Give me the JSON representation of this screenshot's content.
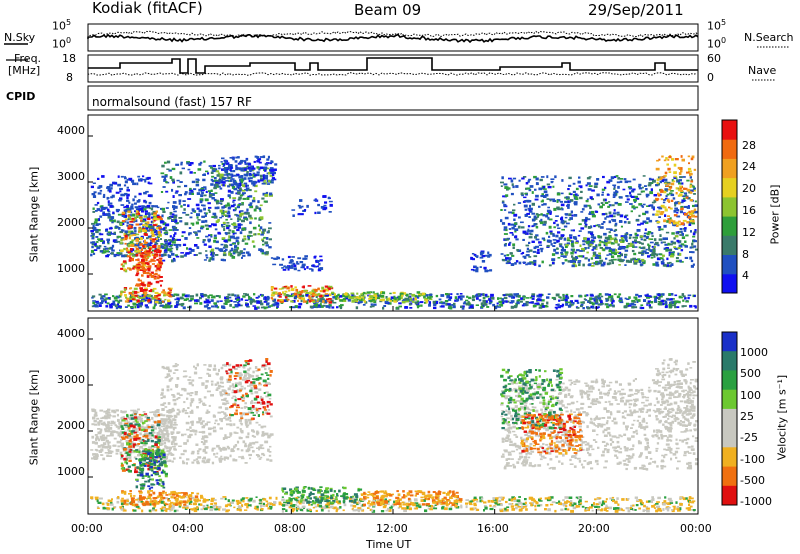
{
  "header": {
    "station": "Kodiak (fitACF)",
    "beam": "Beam 09",
    "date": "29/Sep/2011"
  },
  "top_panels": {
    "nsky_label": "N.Sky",
    "nsearch_label": "N.Search",
    "noise_ticks": [
      "10^5",
      "10^0"
    ],
    "freq_label_line1": "Freq.",
    "freq_label_line2": "[MHz]",
    "freq_ticks": [
      "18",
      "8"
    ],
    "nave_label": "Nave",
    "nave_ticks": [
      "60",
      "0"
    ],
    "cpid_label": "CPID",
    "cpid_value": "normalsound (fast) 157 RF"
  },
  "chart_data": [
    {
      "type": "heatmap",
      "name": "power",
      "ylabel": "Slant Range [km]",
      "xlabel": "",
      "ylim": [
        200,
        4500
      ],
      "yticks": [
        "1000",
        "2000",
        "3000",
        "4000"
      ],
      "colorbar_label": "Power [dB]",
      "colorbar_ticks": [
        "4",
        "8",
        "12",
        "16",
        "20",
        "24",
        "28"
      ],
      "colorbar_colors": [
        "#1010f0",
        "#2050c0",
        "#3a7a6a",
        "#2e9e3a",
        "#8cc430",
        "#e6d020",
        "#f0a020",
        "#f06a10",
        "#e81010"
      ]
    },
    {
      "type": "heatmap",
      "name": "velocity",
      "ylabel": "Slant Range [km]",
      "xlabel": "Time UT",
      "ylim": [
        200,
        4500
      ],
      "yticks": [
        "1000",
        "2000",
        "3000",
        "4000"
      ],
      "xticks": [
        "00:00",
        "04:00",
        "08:00",
        "12:00",
        "16:00",
        "20:00",
        "00:00"
      ],
      "colorbar_label": "Velocity [m s⁻¹]",
      "colorbar_ticks": [
        "1000",
        "500",
        "100",
        "25",
        "-25",
        "-100",
        "-500",
        "-1000"
      ],
      "colorbar_colors": [
        "#1a30c8",
        "#2a7a6a",
        "#2aa040",
        "#6cc830",
        "#c8c8c0",
        "#c8c8c0",
        "#f0b020",
        "#f07010",
        "#e01010"
      ]
    }
  ]
}
